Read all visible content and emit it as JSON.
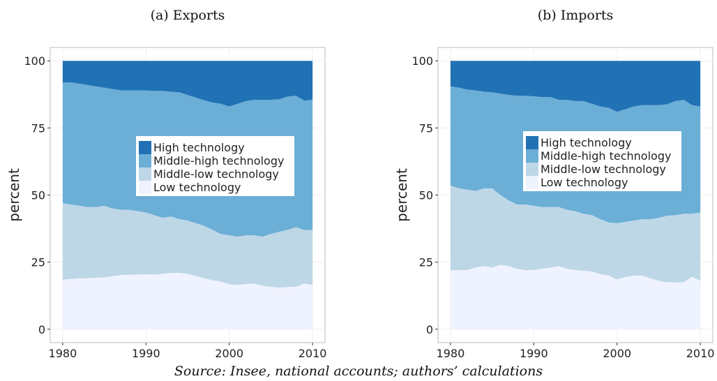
{
  "chart_data": [
    {
      "type": "area",
      "stacked": true,
      "title": "(a) Exports",
      "ylabel": "percent",
      "x": [
        1980,
        1981,
        1982,
        1983,
        1984,
        1985,
        1986,
        1987,
        1988,
        1989,
        1990,
        1991,
        1992,
        1993,
        1994,
        1995,
        1996,
        1997,
        1998,
        1999,
        2000,
        2001,
        2002,
        2003,
        2004,
        2005,
        2006,
        2007,
        2008,
        2009,
        2010
      ],
      "series": [
        {
          "name": "High technology",
          "color": "#2171b5",
          "values": [
            8,
            8,
            8.5,
            9,
            9.5,
            10,
            10.5,
            11,
            11,
            11,
            11,
            11.2,
            11.2,
            11.5,
            11.7,
            12.7,
            13.7,
            14.7,
            15.5,
            16,
            17,
            16,
            15,
            14.5,
            14.5,
            14.5,
            14.3,
            13.3,
            13,
            14.8,
            14.5
          ]
        },
        {
          "name": "Middle-high technology",
          "color": "#6baed6",
          "values": [
            45,
            45.5,
            45.5,
            45.5,
            45,
            44,
            44.5,
            44.5,
            44.5,
            45,
            45.5,
            46.3,
            47.3,
            46.5,
            47.3,
            46.8,
            46.8,
            46.8,
            47.5,
            48.5,
            48,
            49.5,
            50,
            50.5,
            51,
            50,
            49.4,
            49.7,
            49,
            48.2,
            48.5
          ]
        },
        {
          "name": "Middle-low technology",
          "color": "#bdd7e7",
          "values": [
            28.5,
            27.8,
            27,
            26.5,
            26.3,
            26.7,
            25.2,
            24.3,
            24.2,
            23.6,
            23,
            22.1,
            20.9,
            21,
            20,
            19.9,
            19.7,
            19.5,
            18.8,
            17.7,
            18.3,
            18,
            18.2,
            18,
            18.3,
            19.7,
            20.8,
            21.3,
            22.2,
            20,
            20.5
          ]
        },
        {
          "name": "Low technology",
          "color": "#eff3ff",
          "values": [
            18.5,
            18.7,
            19,
            19,
            19.2,
            19.3,
            19.8,
            20.2,
            20.3,
            20.4,
            20.5,
            20.4,
            20.6,
            21,
            21,
            20.6,
            19.8,
            19,
            18.2,
            17.8,
            16.7,
            16.5,
            16.8,
            17,
            16.2,
            15.8,
            15.5,
            15.7,
            15.8,
            17,
            16.5
          ]
        }
      ],
      "xlim": [
        1978.5,
        2011.5
      ],
      "xticks": [
        1980,
        1990,
        2000,
        2010
      ],
      "ylim": [
        -5,
        105
      ],
      "yticks": [
        0,
        25,
        50,
        75,
        100
      ],
      "grid": true
    },
    {
      "type": "area",
      "stacked": true,
      "title": "(b) Imports",
      "ylabel": "percent",
      "x": [
        1980,
        1981,
        1982,
        1983,
        1984,
        1985,
        1986,
        1987,
        1988,
        1989,
        1990,
        1991,
        1992,
        1993,
        1994,
        1995,
        1996,
        1997,
        1998,
        1999,
        2000,
        2001,
        2002,
        2003,
        2004,
        2005,
        2006,
        2007,
        2008,
        2009,
        2010
      ],
      "series": [
        {
          "name": "High technology",
          "color": "#2171b5",
          "values": [
            9.5,
            10,
            10.7,
            11,
            11.5,
            11.7,
            12.2,
            12.7,
            13,
            13,
            13.2,
            13.5,
            13.5,
            14.5,
            14.5,
            15,
            15,
            16,
            17,
            17.5,
            19,
            18,
            17,
            16.5,
            16.5,
            16.5,
            16.2,
            15,
            14.5,
            16.5,
            17
          ]
        },
        {
          "name": "Middle-high technology",
          "color": "#6baed6",
          "values": [
            37,
            37.5,
            37.3,
            37.5,
            36,
            35.8,
            37.8,
            39.3,
            40.5,
            40.5,
            40.8,
            41,
            41,
            40,
            41,
            41,
            42,
            41.5,
            42,
            42.7,
            41.5,
            42,
            42.5,
            42.5,
            42.5,
            42,
            41.5,
            42.5,
            42.5,
            40.5,
            39.5
          ]
        },
        {
          "name": "Middle-low technology",
          "color": "#bdd7e7",
          "values": [
            31.5,
            30.5,
            30,
            28.5,
            29,
            29.5,
            26,
            24.5,
            24,
            24.5,
            24,
            23,
            22.5,
            22,
            22,
            22,
            21.2,
            21,
            20.5,
            19.8,
            21,
            20.5,
            20.5,
            21,
            22,
            23.5,
            24.8,
            25,
            25.5,
            23.5,
            25.5
          ]
        },
        {
          "name": "Low technology",
          "color": "#eff3ff",
          "values": [
            22,
            22,
            22,
            23,
            23.5,
            23,
            24,
            23.5,
            22.5,
            22,
            22,
            22.5,
            23,
            23.5,
            22.5,
            22,
            21.8,
            21.5,
            20.5,
            20,
            18.5,
            19.5,
            20,
            20,
            19,
            18,
            17.5,
            17.5,
            17.5,
            19.5,
            18
          ]
        }
      ],
      "xlim": [
        1978.5,
        2011.5
      ],
      "xticks": [
        1980,
        1990,
        2000,
        2010
      ],
      "ylim": [
        -5,
        105
      ],
      "yticks": [
        0,
        25,
        50,
        75,
        100
      ],
      "grid": true
    }
  ],
  "source": "Source: Insee, national accounts; authors’ calculations"
}
